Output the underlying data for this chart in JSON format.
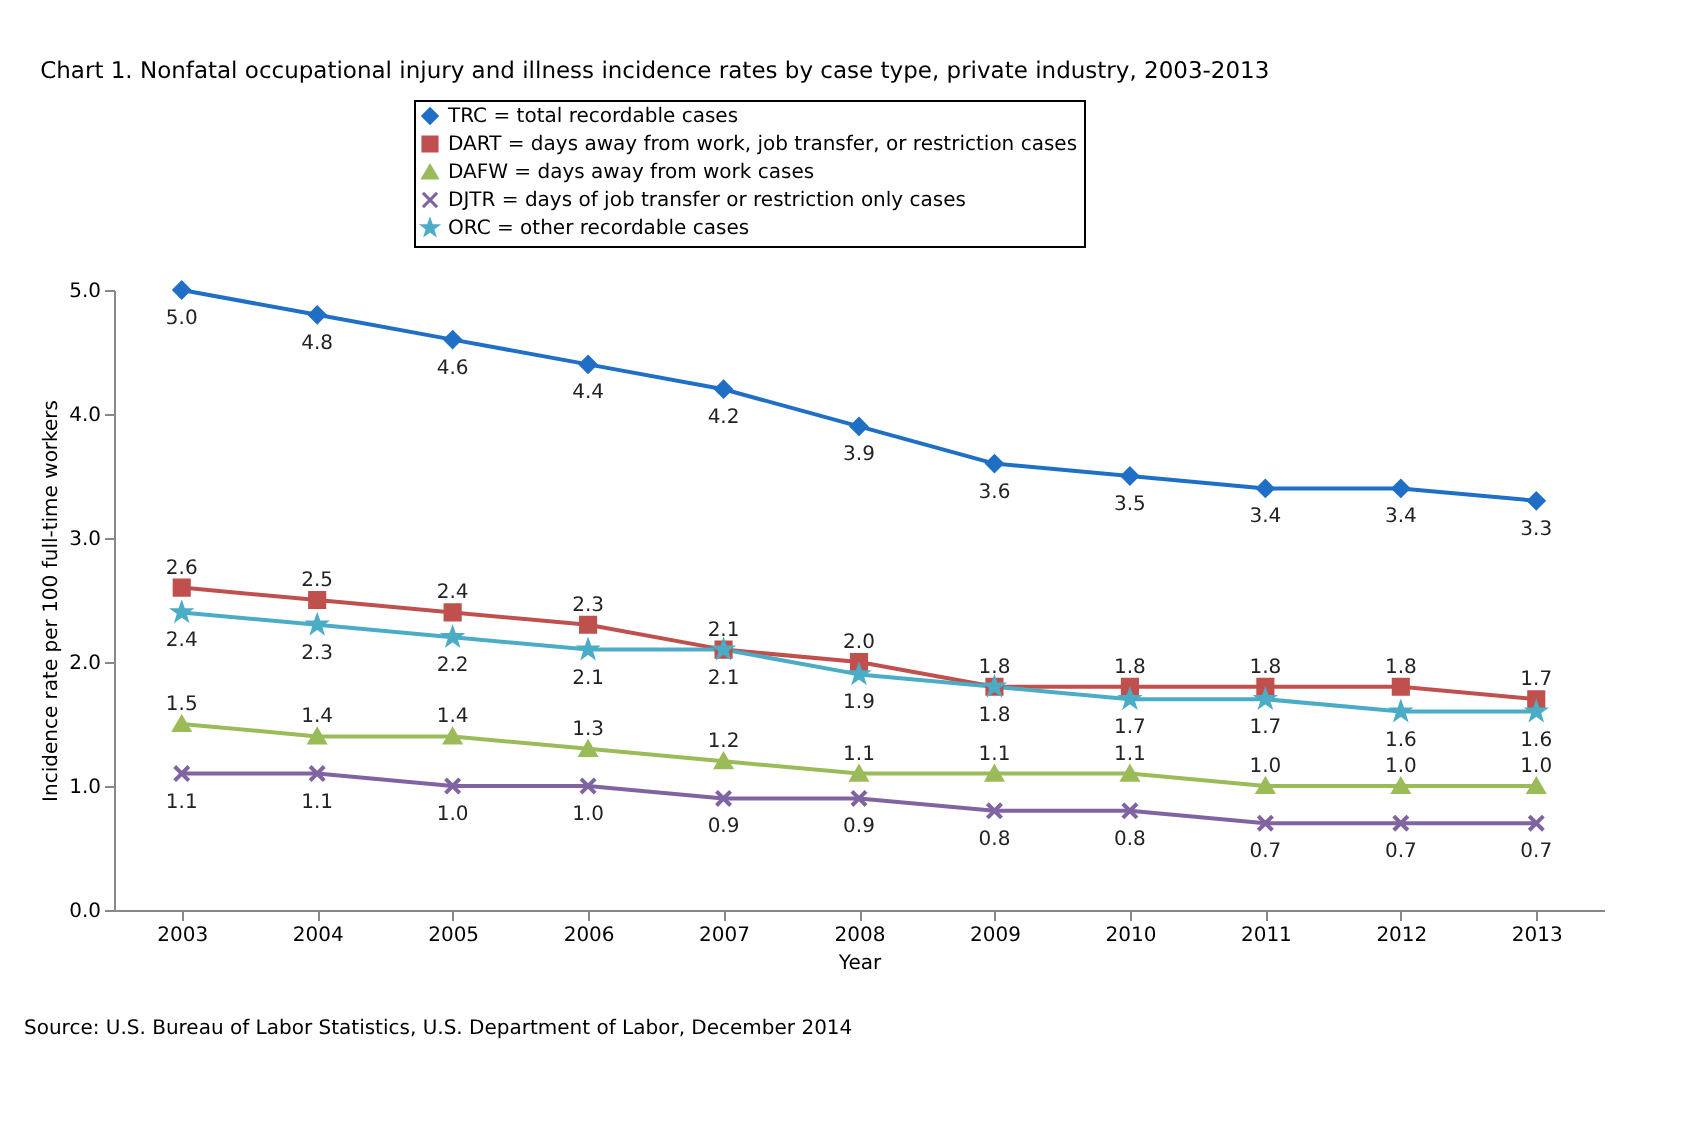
{
  "chart_data": {
    "type": "line",
    "title": "Chart 1. Nonfatal occupational injury and illness incidence rates by case type, private industry, 2003-2013",
    "xlabel": "Year",
    "ylabel": "Incidence rate per 100 full-time workers",
    "annotations": [
      "Source: U.S. Bureau of Labor Statistics, U.S. Department of Labor, December 2014"
    ],
    "categories": [
      "2003",
      "2004",
      "2005",
      "2006",
      "2007",
      "2008",
      "2009",
      "2010",
      "2011",
      "2012",
      "2013"
    ],
    "series": [
      {
        "name": "TRC = total recordable cases",
        "color": "#1f6fc6",
        "marker": "diamond",
        "values": [
          5.0,
          4.8,
          4.6,
          4.4,
          4.2,
          3.9,
          3.6,
          3.5,
          3.4,
          3.4,
          3.3
        ],
        "value_labels": [
          "5.0",
          "4.8",
          "4.6",
          "4.4",
          "4.2",
          "3.9",
          "3.6",
          "3.5",
          "3.4",
          "3.4",
          "3.3"
        ]
      },
      {
        "name": "DART = days away from work, job transfer, or restriction cases",
        "color": "#c0504d",
        "marker": "square",
        "values": [
          2.6,
          2.5,
          2.4,
          2.3,
          2.1,
          2.0,
          1.8,
          1.8,
          1.8,
          1.8,
          1.7
        ],
        "value_labels": [
          "2.6",
          "2.5",
          "2.4",
          "2.3",
          "2.1",
          "2.0",
          "1.8",
          "1.8",
          "1.8",
          "1.8",
          "1.7"
        ]
      },
      {
        "name": "DAFW = days away from work cases",
        "color": "#9bbb59",
        "marker": "triangle",
        "values": [
          1.5,
          1.4,
          1.4,
          1.3,
          1.2,
          1.1,
          1.1,
          1.1,
          1.0,
          1.0,
          1.0
        ],
        "value_labels": [
          "1.5",
          "1.4",
          "1.4",
          "1.3",
          "1.2",
          "1.1",
          "1.1",
          "1.1",
          "1.0",
          "1.0",
          "1.0"
        ]
      },
      {
        "name": "DJTR = days of job transfer or restriction only cases",
        "color": "#8064a2",
        "marker": "cross",
        "values": [
          1.1,
          1.1,
          1.0,
          1.0,
          0.9,
          0.9,
          0.8,
          0.8,
          0.7,
          0.7,
          0.7
        ],
        "value_labels": [
          "1.1",
          "1.1",
          "1.0",
          "1.0",
          "0.9",
          "0.9",
          "0.8",
          "0.8",
          "0.7",
          "0.7",
          "0.7"
        ]
      },
      {
        "name": "ORC = other recordable cases",
        "color": "#4bacc6",
        "marker": "star",
        "values": [
          2.4,
          2.3,
          2.2,
          2.1,
          2.1,
          1.9,
          1.8,
          1.7,
          1.7,
          1.6,
          1.6
        ],
        "value_labels": [
          "2.4",
          "2.3",
          "2.2",
          "2.1",
          "2.1",
          "1.9",
          "1.8",
          "1.7",
          "1.7",
          "1.6",
          "1.6"
        ]
      }
    ],
    "ylim": [
      0,
      5.0
    ],
    "yticks": [
      {
        "value": 0,
        "label": "0.0"
      },
      {
        "value": 1,
        "label": "1.0"
      },
      {
        "value": 2,
        "label": "2.0"
      },
      {
        "value": 3,
        "label": "3.0"
      },
      {
        "value": 4,
        "label": "4.0"
      },
      {
        "value": 5,
        "label": "5.0"
      }
    ],
    "legend": "top",
    "line_style": "solid"
  }
}
